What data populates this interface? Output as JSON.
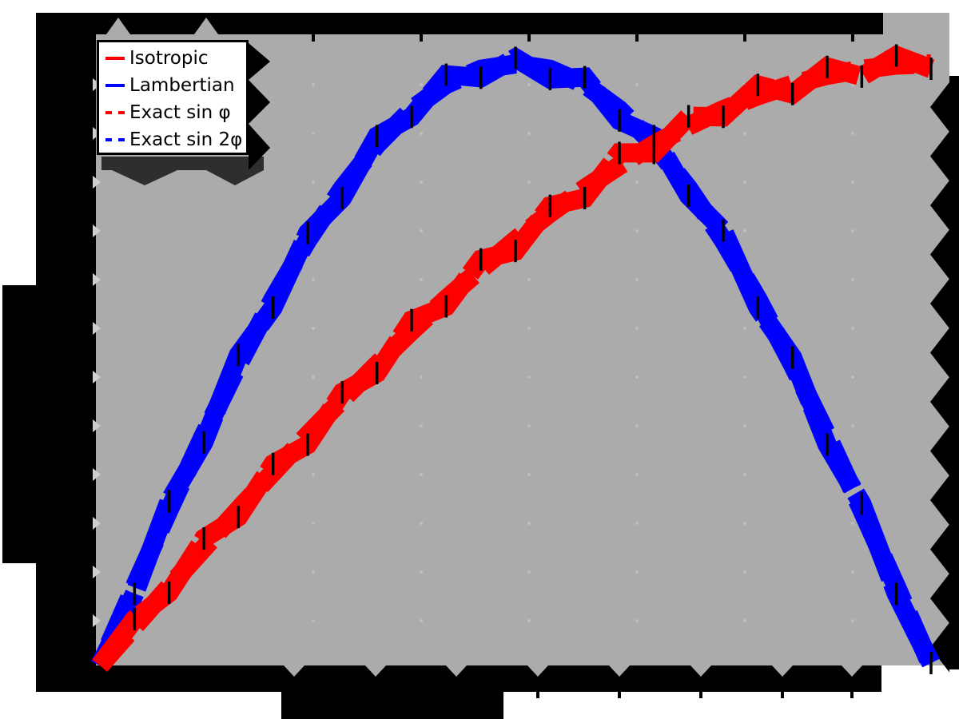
{
  "figure": {
    "background": "#ffffff",
    "plot_background": "#ababab",
    "frame_color": "#000000",
    "shadow_color": "#2e2e2e",
    "notch_color": "#cfcfcf",
    "grid_dot_color": "#bdbdbd",
    "error_bar_color": "#000000"
  },
  "legend": {
    "entries": [
      {
        "label": "Isotropic",
        "color": "#ff0000",
        "style": "solid"
      },
      {
        "label": "Lambertian",
        "color": "#0000ff",
        "style": "solid"
      },
      {
        "label": "Exact sin φ",
        "color": "#ff0000",
        "style": "dashed"
      },
      {
        "label": "Exact sin 2φ",
        "color": "#0000ff",
        "style": "dashed"
      }
    ]
  },
  "chart_data": {
    "type": "line",
    "title": "",
    "xlabel": "",
    "ylabel": "",
    "axis_text_rendered_illegible": true,
    "xlim_degrees": [
      0,
      90
    ],
    "ylim": [
      0,
      1.05
    ],
    "legend_position": "upper left",
    "x_degrees": [
      0,
      3.75,
      7.5,
      11.25,
      15,
      18.75,
      22.5,
      26.25,
      30,
      33.75,
      37.5,
      41.25,
      45,
      48.75,
      52.5,
      56.25,
      60,
      63.75,
      67.5,
      71.25,
      75,
      78.75,
      82.5,
      86.25,
      90
    ],
    "series": [
      {
        "name": "Isotropic",
        "color": "#ff0000",
        "style": "solid",
        "has_error_bars": true,
        "values": [
          0,
          0.077,
          0.121,
          0.211,
          0.247,
          0.335,
          0.367,
          0.454,
          0.486,
          0.574,
          0.597,
          0.675,
          0.689,
          0.764,
          0.777,
          0.852,
          0.852,
          0.913,
          0.912,
          0.965,
          0.95,
          0.995,
          0.979,
          1.014,
          0.992
        ]
      },
      {
        "name": "Lambertian",
        "color": "#0000ff",
        "style": "solid",
        "has_error_bars": true,
        "values": [
          0,
          0.119,
          0.273,
          0.371,
          0.516,
          0.595,
          0.719,
          0.777,
          0.88,
          0.912,
          0.982,
          0.977,
          1.01,
          0.975,
          0.978,
          0.906,
          0.88,
          0.781,
          0.723,
          0.595,
          0.512,
          0.367,
          0.269,
          0.119,
          0.004
        ]
      },
      {
        "name": "Exact sin φ",
        "color": "#ff0000",
        "style": "dashed",
        "has_error_bars": false,
        "values": [
          0,
          0.065,
          0.131,
          0.195,
          0.259,
          0.321,
          0.383,
          0.442,
          0.5,
          0.556,
          0.609,
          0.659,
          0.707,
          0.752,
          0.793,
          0.831,
          0.866,
          0.897,
          0.924,
          0.947,
          0.966,
          0.981,
          0.991,
          0.998,
          1
        ]
      },
      {
        "name": "Exact sin 2φ",
        "color": "#0000ff",
        "style": "dashed",
        "has_error_bars": false,
        "values": [
          0,
          0.131,
          0.259,
          0.383,
          0.5,
          0.609,
          0.707,
          0.793,
          0.866,
          0.924,
          0.966,
          0.991,
          1,
          0.991,
          0.966,
          0.924,
          0.866,
          0.793,
          0.707,
          0.609,
          0.5,
          0.383,
          0.259,
          0.131,
          0
        ]
      }
    ],
    "error_bar_halfwidth_units": 0.018
  }
}
